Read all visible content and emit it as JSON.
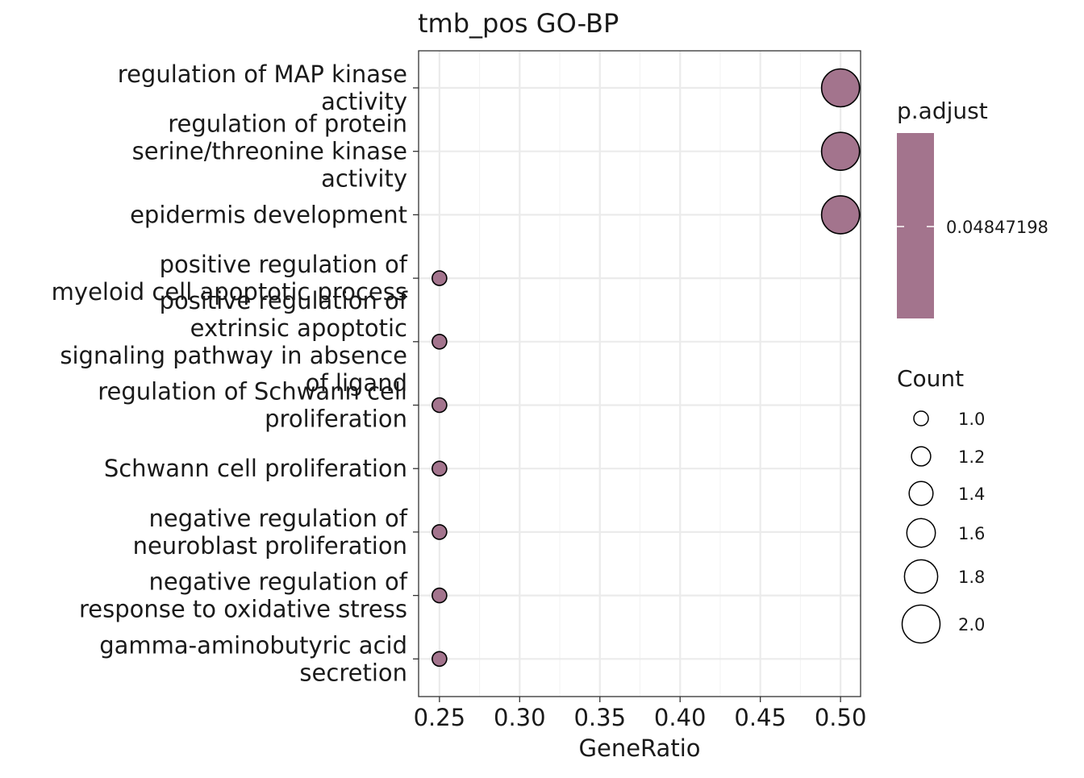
{
  "chart_data": {
    "type": "scatter",
    "title": "tmb_pos GO-BP",
    "xlabel": "GeneRatio",
    "ylabel": "",
    "xlim": [
      0.237,
      0.5125
    ],
    "x_ticks": [
      "0.25",
      "0.30",
      "0.35",
      "0.40",
      "0.45",
      "0.50"
    ],
    "grid": true,
    "legend_position": "right",
    "point_fill": "#a3748d",
    "point_stroke": "#000000",
    "categories": [
      {
        "label": [
          "regulation of MAP kinase",
          "activity"
        ],
        "x": 0.5,
        "count": 2
      },
      {
        "label": [
          "regulation of protein",
          "serine/threonine kinase",
          "activity"
        ],
        "x": 0.5,
        "count": 2
      },
      {
        "label": [
          "epidermis development"
        ],
        "x": 0.5,
        "count": 2
      },
      {
        "label": [
          "positive regulation of",
          "myeloid cell apoptotic process"
        ],
        "x": 0.25,
        "count": 1
      },
      {
        "label": [
          "positive regulation of",
          "extrinsic apoptotic",
          "signaling pathway in absence",
          "of ligand"
        ],
        "x": 0.25,
        "count": 1
      },
      {
        "label": [
          "regulation of Schwann cell",
          "proliferation"
        ],
        "x": 0.25,
        "count": 1
      },
      {
        "label": [
          "Schwann cell proliferation"
        ],
        "x": 0.25,
        "count": 1
      },
      {
        "label": [
          "negative regulation of",
          "neuroblast proliferation"
        ],
        "x": 0.25,
        "count": 1
      },
      {
        "label": [
          "negative regulation of",
          "response to oxidative stress"
        ],
        "x": 0.25,
        "count": 1
      },
      {
        "label": [
          "gamma-aminobutyric acid",
          "secretion"
        ],
        "x": 0.25,
        "count": 1
      }
    ],
    "legend_color": {
      "title": "p.adjust",
      "value_label": "0.04847198",
      "color": "#a3748d"
    },
    "legend_size": {
      "title": "Count",
      "entries": [
        "1.0",
        "1.2",
        "1.4",
        "1.6",
        "1.8",
        "2.0"
      ]
    }
  }
}
